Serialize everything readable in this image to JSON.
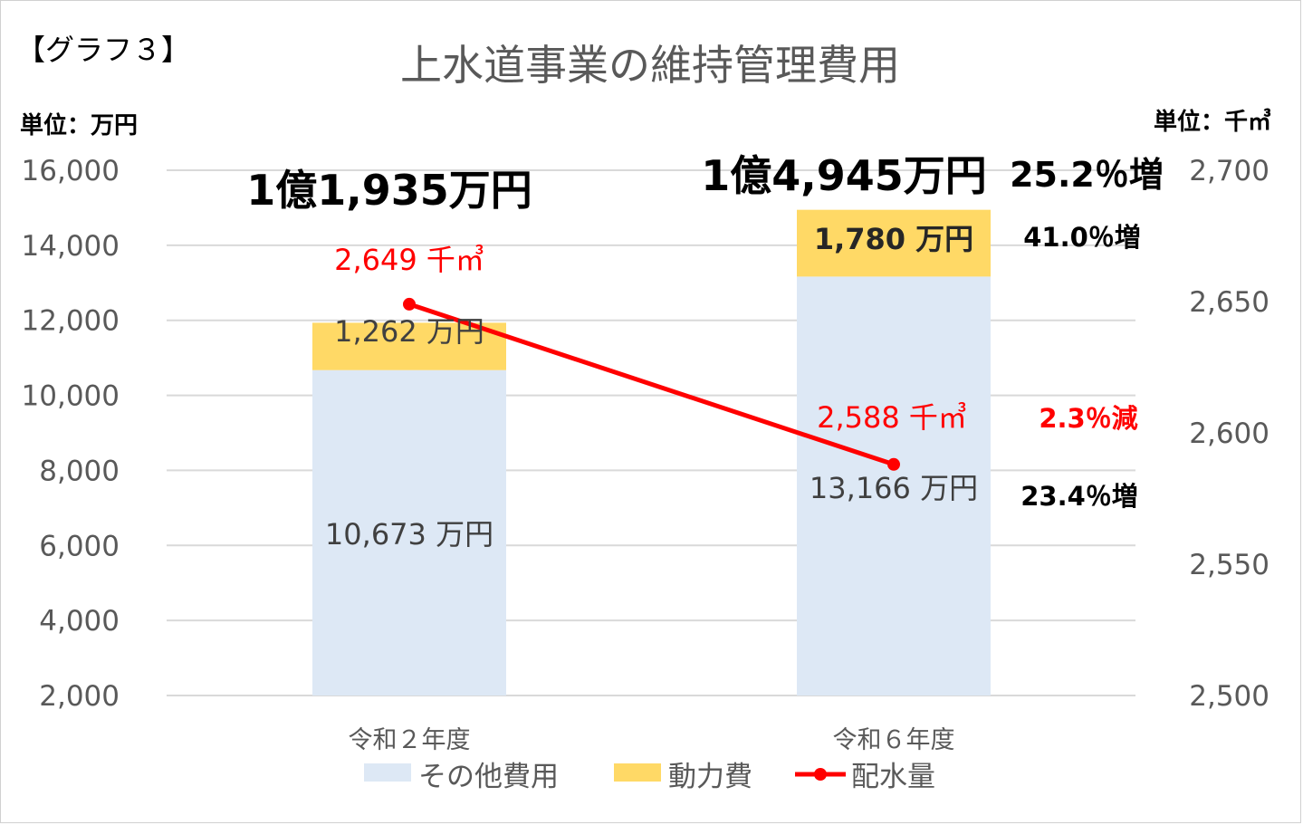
{
  "chart_tag": "【グラフ３】",
  "chart_data": {
    "type": "bar",
    "title": "上水道事業の維持管理費用",
    "left_unit_label": "単位：万円",
    "right_unit_label": "単位：千㎥",
    "categories": [
      "令和２年度",
      "令和６年度"
    ],
    "y_left": {
      "min": 2000,
      "max": 16000,
      "ticks": [
        "2,000",
        "4,000",
        "6,000",
        "8,000",
        "10,000",
        "12,000",
        "14,000",
        "16,000"
      ],
      "tick_values": [
        2000,
        4000,
        6000,
        8000,
        10000,
        12000,
        14000,
        16000
      ]
    },
    "y_right": {
      "min": 2500,
      "max": 2700,
      "ticks": [
        "2,500",
        "2,550",
        "2,600",
        "2,650",
        "2,700"
      ],
      "tick_values": [
        2500,
        2550,
        2600,
        2650,
        2700
      ]
    },
    "grid": true,
    "legend_position": "bottom",
    "series": [
      {
        "name": "その他費用",
        "type": "stacked-bar",
        "axis": "left",
        "color": "#dde8f5",
        "values": [
          10673,
          13166
        ],
        "labels": [
          "10,673 万円",
          "13,166 万円"
        ]
      },
      {
        "name": "動力費",
        "type": "stacked-bar",
        "axis": "left",
        "color": "#ffd966",
        "values": [
          1262,
          1780
        ],
        "labels": [
          "1,262 万円",
          "1,780 万円"
        ]
      },
      {
        "name": "配水量",
        "type": "line",
        "axis": "right",
        "color": "#ff0000",
        "values": [
          2649,
          2588
        ],
        "labels": [
          "2,649 千㎥",
          "2,588 千㎥"
        ]
      }
    ],
    "totals": [
      "1億1,935万円",
      "1億4,945万円"
    ],
    "annotations": {
      "total_change": "25.2％増",
      "power_change": "41.0％増",
      "water_change": "2.3％減",
      "other_change": "23.4％増"
    }
  }
}
